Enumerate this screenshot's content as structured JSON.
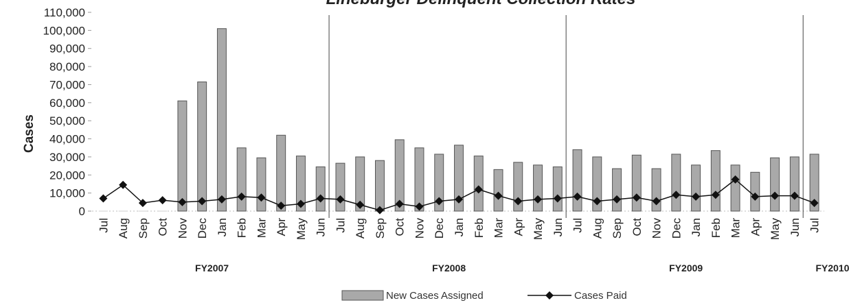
{
  "chart_data": {
    "type": "bar",
    "title": "Lineburger Delinquent Collection Rates",
    "ylabel": "Cases",
    "xlabel": "",
    "ylim": [
      0,
      110000
    ],
    "yticks": [
      0,
      10000,
      20000,
      30000,
      40000,
      50000,
      60000,
      70000,
      80000,
      90000,
      100000,
      110000
    ],
    "ytick_labels": [
      "0",
      "10,000",
      "20,000",
      "30,000",
      "40,000",
      "50,000",
      "60,000",
      "70,000",
      "80,000",
      "90,000",
      "100,000",
      "110,000"
    ],
    "categories": [
      "Jul",
      "Aug",
      "Sep",
      "Oct",
      "Nov",
      "Dec",
      "Jan",
      "Feb",
      "Mar",
      "Apr",
      "May",
      "Jun",
      "Jul",
      "Aug",
      "Sep",
      "Oct",
      "Nov",
      "Dec",
      "Jan",
      "Feb",
      "Mar",
      "Apr",
      "May",
      "Jun",
      "Jul",
      "Aug",
      "Sep",
      "Oct",
      "Nov",
      "Dec",
      "Jan",
      "Feb",
      "Mar",
      "Apr",
      "May",
      "Jun",
      "Jul"
    ],
    "fiscal_years": [
      {
        "label": "FY2007",
        "start": 0,
        "end": 11
      },
      {
        "label": "FY2008",
        "start": 12,
        "end": 23
      },
      {
        "label": "FY2009",
        "start": 24,
        "end": 35
      },
      {
        "label": "FY2010",
        "start": 36,
        "end": 36
      }
    ],
    "series": [
      {
        "name": "New Cases Assigned",
        "kind": "bar",
        "color": "#a9a9a9",
        "values": [
          0,
          0,
          0,
          0,
          61000,
          71500,
          101000,
          35000,
          29500,
          42000,
          30500,
          24500,
          26500,
          30000,
          28000,
          39500,
          35000,
          31500,
          36500,
          30500,
          23000,
          27000,
          25500,
          24500,
          34000,
          30000,
          23500,
          31000,
          23500,
          31500,
          25500,
          33500,
          25500,
          21500,
          29500,
          30000,
          31500
        ]
      },
      {
        "name": "Cases Paid",
        "kind": "line",
        "color": "#111111",
        "values": [
          7000,
          14500,
          4500,
          6000,
          5000,
          5500,
          6500,
          8000,
          7500,
          3000,
          4000,
          7000,
          6500,
          3500,
          500,
          4000,
          2500,
          5500,
          6500,
          12000,
          8500,
          5500,
          6500,
          7000,
          8000,
          5500,
          6500,
          7500,
          5500,
          9000,
          8000,
          9000,
          17500,
          8000,
          8500,
          8500,
          4500
        ]
      }
    ],
    "legend_position": "bottom",
    "grid": false
  }
}
